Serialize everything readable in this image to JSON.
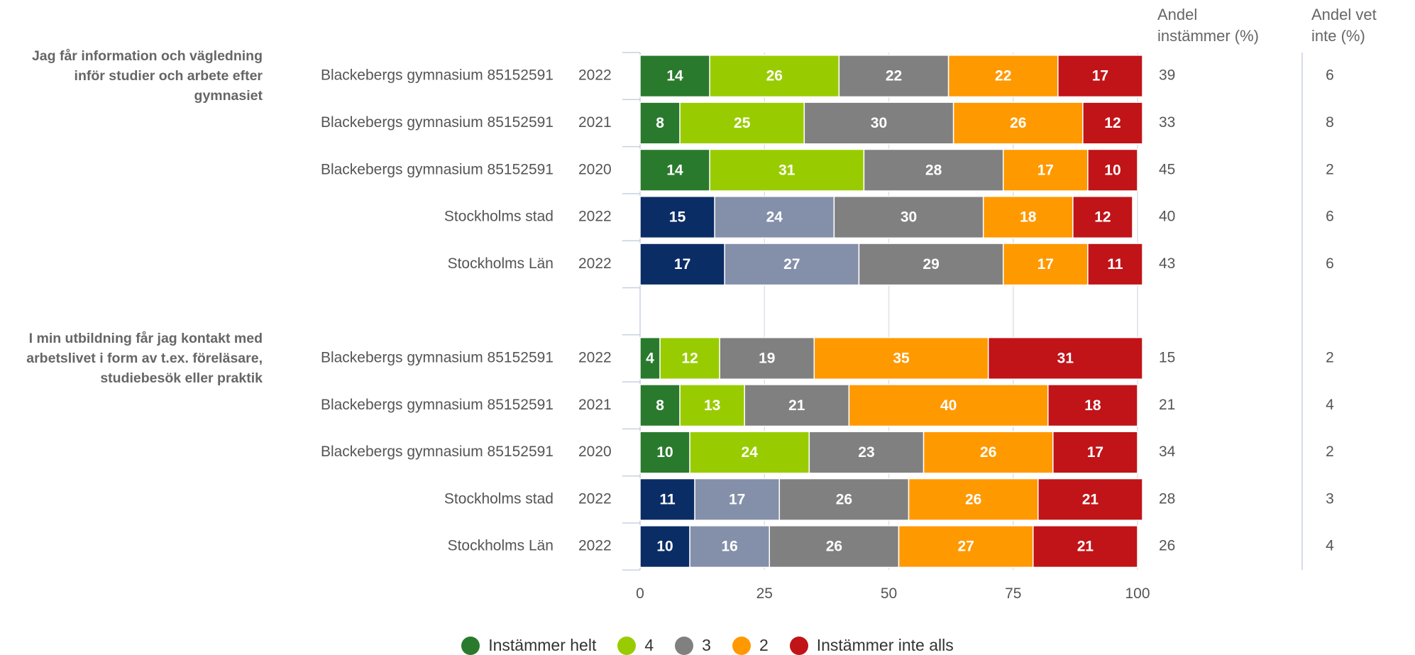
{
  "chart_data": {
    "type": "stacked_bar_h",
    "group_labels": [
      "Jag får information och vägledning inför studier och arbete efter gymnasiet",
      "I min utbildning får jag kontakt med arbetslivet i form av t.ex. föreläsare, studiebesök eller praktik"
    ],
    "categories": [
      "Blackebergs gymnasium 85152591",
      "Blackebergs gymnasium 85152591",
      "Blackebergs gymnasium 85152591",
      "Stockholms stad",
      "Stockholms Län",
      null,
      "Blackebergs gymnasium 85152591",
      "Blackebergs gymnasium 85152591",
      "Blackebergs gymnasium 85152591",
      "Stockholms stad",
      "Stockholms Län"
    ],
    "years": [
      "2022",
      "2021",
      "2020",
      "2022",
      "2022",
      null,
      "2022",
      "2021",
      "2020",
      "2022",
      "2022"
    ],
    "series": [
      {
        "name": "Instämmer helt",
        "color": "#2a7a2e",
        "values": [
          14,
          8,
          14,
          15,
          17,
          null,
          4,
          8,
          10,
          11,
          10
        ],
        "colors": [
          "#2a7a2e",
          "#2a7a2e",
          "#2a7a2e",
          "#0b2d66",
          "#0b2d66",
          null,
          "#2a7a2e",
          "#2a7a2e",
          "#2a7a2e",
          "#0b2d66",
          "#0b2d66"
        ]
      },
      {
        "name": "4",
        "color": "#99cc00",
        "values": [
          26,
          25,
          31,
          24,
          27,
          null,
          12,
          13,
          24,
          17,
          16
        ],
        "colors": [
          "#99cc00",
          "#99cc00",
          "#99cc00",
          "#8490aa",
          "#8490aa",
          null,
          "#99cc00",
          "#99cc00",
          "#99cc00",
          "#8490aa",
          "#8490aa"
        ]
      },
      {
        "name": "3",
        "color": "#808080",
        "values": [
          22,
          30,
          28,
          30,
          29,
          null,
          19,
          21,
          23,
          26,
          26
        ]
      },
      {
        "name": "2",
        "color": "#ff9900",
        "values": [
          22,
          26,
          17,
          18,
          17,
          null,
          35,
          40,
          26,
          26,
          27
        ]
      },
      {
        "name": "Instämmer inte alls",
        "color": "#c01418",
        "values": [
          17,
          12,
          10,
          12,
          11,
          null,
          31,
          18,
          17,
          21,
          21
        ]
      }
    ],
    "agree_header": "Andel instämmer (%)",
    "agree": [
      39,
      33,
      45,
      40,
      43,
      null,
      15,
      21,
      34,
      28,
      26
    ],
    "dont_know_header": "Andel vet inte (%)",
    "dont_know": [
      6,
      8,
      2,
      6,
      6,
      null,
      2,
      4,
      2,
      3,
      4
    ],
    "xlim": [
      0,
      100
    ],
    "xticks": [
      0,
      25,
      50,
      75,
      100
    ],
    "grid": true
  }
}
